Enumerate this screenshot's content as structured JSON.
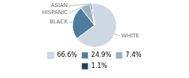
{
  "chart_data": {
    "type": "pie",
    "categories": [
      "WHITE",
      "BLACK",
      "HISPANIC",
      "ASIAN"
    ],
    "values": [
      66.6,
      24.9,
      7.4,
      1.1
    ],
    "value_labels": [
      "66.6%",
      "24.9%",
      "7.4%",
      "1.1%"
    ],
    "colors": [
      "#cdd8e3",
      "#4d7d9e",
      "#9ab3c3",
      "#1e3f5c"
    ],
    "legend": "bottom"
  }
}
